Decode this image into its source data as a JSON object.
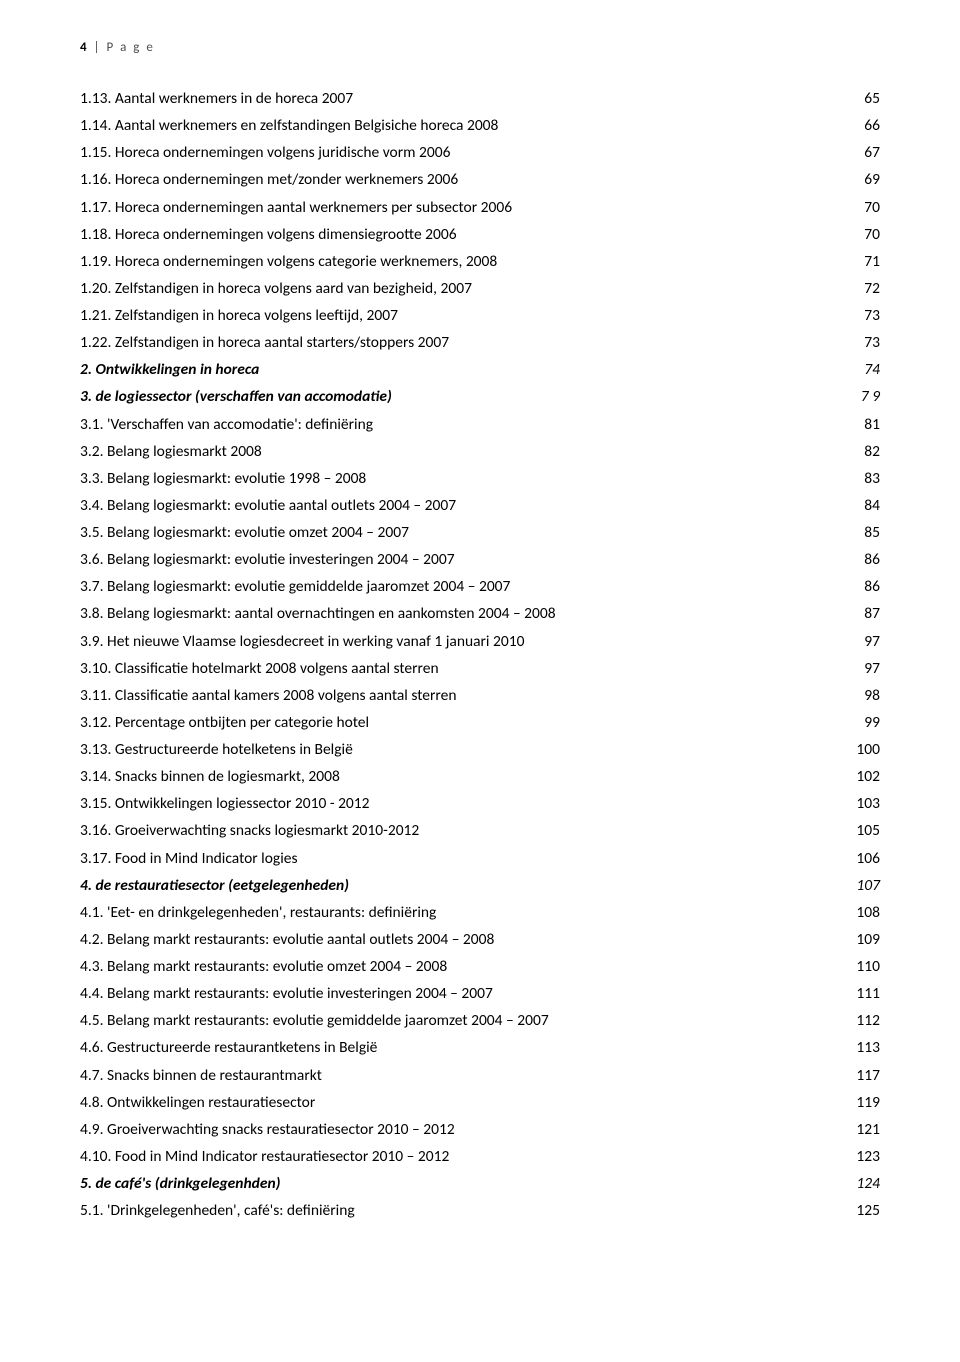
{
  "page_header": {
    "num": "4",
    "sep": " | ",
    "label": "P a g e"
  },
  "entries": [
    {
      "title": "1.13. Aantal werknemers in de horeca 2007",
      "page": "65"
    },
    {
      "title": "1.14. Aantal werknemers en zelfstandingen Belgisiche horeca 2008",
      "page": "66"
    },
    {
      "title": "1.15. Horeca ondernemingen volgens juridische vorm 2006",
      "page": "67"
    },
    {
      "title": "1.16. Horeca ondernemingen met/zonder werknemers 2006",
      "page": "69"
    },
    {
      "title": "1.17. Horeca ondernemingen aantal werknemers per subsector 2006",
      "page": "70"
    },
    {
      "title": "1.18. Horeca ondernemingen volgens dimensiegrootte 2006",
      "page": "70"
    },
    {
      "title": "1.19. Horeca ondernemingen volgens categorie werknemers, 2008",
      "page": "71"
    },
    {
      "title": "1.20. Zelfstandigen in horeca volgens aard van bezigheid, 2007",
      "page": "72"
    },
    {
      "title": "1.21. Zelfstandigen in horeca volgens leeftijd, 2007",
      "page": "73"
    },
    {
      "title": "1.22. Zelfstandigen in horeca aantal starters/stoppers 2007",
      "page": "73"
    },
    {
      "title": "2. Ontwikkelingen in horeca",
      "page": "74",
      "bold": true
    },
    {
      "title": "3. de logiessector (verschaffen van accomodatie)",
      "page": "7 9",
      "bold": true
    },
    {
      "title": "3.1. 'Verschaffen van accomodatie': definiëring",
      "page": "81"
    },
    {
      "title": "3.2. Belang logiesmarkt 2008",
      "page": "82"
    },
    {
      "title": "3.3. Belang logiesmarkt: evolutie 1998 – 2008",
      "page": "83"
    },
    {
      "title": "3.4. Belang logiesmarkt: evolutie aantal outlets 2004 – 2007",
      "page": "84"
    },
    {
      "title": "3.5. Belang logiesmarkt: evolutie omzet 2004 – 2007",
      "page": "85"
    },
    {
      "title": "3.6. Belang logiesmarkt: evolutie investeringen 2004 – 2007",
      "page": "86"
    },
    {
      "title": "3.7. Belang logiesmarkt: evolutie gemiddelde jaaromzet 2004 – 2007",
      "page": "86"
    },
    {
      "title": "3.8. Belang logiesmarkt: aantal overnachtingen en aankomsten 2004 – 2008",
      "page": "87"
    },
    {
      "title": "3.9. Het nieuwe Vlaamse logiesdecreet in werking vanaf 1 januari 2010",
      "page": "97"
    },
    {
      "title": "3.10. Classificatie hotelmarkt 2008 volgens aantal sterren",
      "page": "97"
    },
    {
      "title": "3.11. Classificatie aantal kamers 2008 volgens aantal sterren",
      "page": "98"
    },
    {
      "title": "3.12. Percentage ontbijten per categorie hotel",
      "page": "99"
    },
    {
      "title": "3.13. Gestructureerde hotelketens in België",
      "page": "100"
    },
    {
      "title": "3.14. Snacks binnen de logiesmarkt, 2008",
      "page": "102"
    },
    {
      "title": "3.15. Ontwikkelingen logiessector 2010 - 2012",
      "page": "103"
    },
    {
      "title": "3.16. Groeiverwachting snacks  logiesmarkt 2010-2012",
      "page": "105"
    },
    {
      "title": "3.17. Food in Mind Indicator logies",
      "page": "106"
    },
    {
      "title": "4. de restauratiesector (eetgelegenheden)",
      "page": "107",
      "bold": true
    },
    {
      "title": "4.1. 'Eet- en drinkgelegenheden', restaurants: definiëring",
      "page": "108"
    },
    {
      "title": "4.2. Belang markt restaurants: evolutie aantal outlets 2004 – 2008",
      "page": "109"
    },
    {
      "title": "4.3. Belang markt restaurants: evolutie omzet 2004 – 2008",
      "page": "110"
    },
    {
      "title": "4.4. Belang markt restaurants: evolutie investeringen 2004 – 2007",
      "page": "111"
    },
    {
      "title": "4.5. Belang markt restaurants: evolutie gemiddelde jaaromzet 2004 – 2007",
      "page": "112"
    },
    {
      "title": "4.6. Gestructureerde restaurantketens in België",
      "page": "113"
    },
    {
      "title": "4.7. Snacks binnen de restaurantmarkt",
      "page": "117"
    },
    {
      "title": "4.8. Ontwikkelingen restauratiesector",
      "page": "119"
    },
    {
      "title": "4.9. Groeiverwachting snacks restauratiesector 2010 – 2012",
      "page": "121"
    },
    {
      "title": "4.10.  Food in Mind Indicator restauratiesector 2010 – 2012",
      "page": "123"
    },
    {
      "title": "5. de café's (drinkgelegenhden)",
      "page": "124",
      "bold": true
    },
    {
      "title": "5.1. 'Drinkgelegenheden', café's: definiëring",
      "page": "125"
    }
  ]
}
